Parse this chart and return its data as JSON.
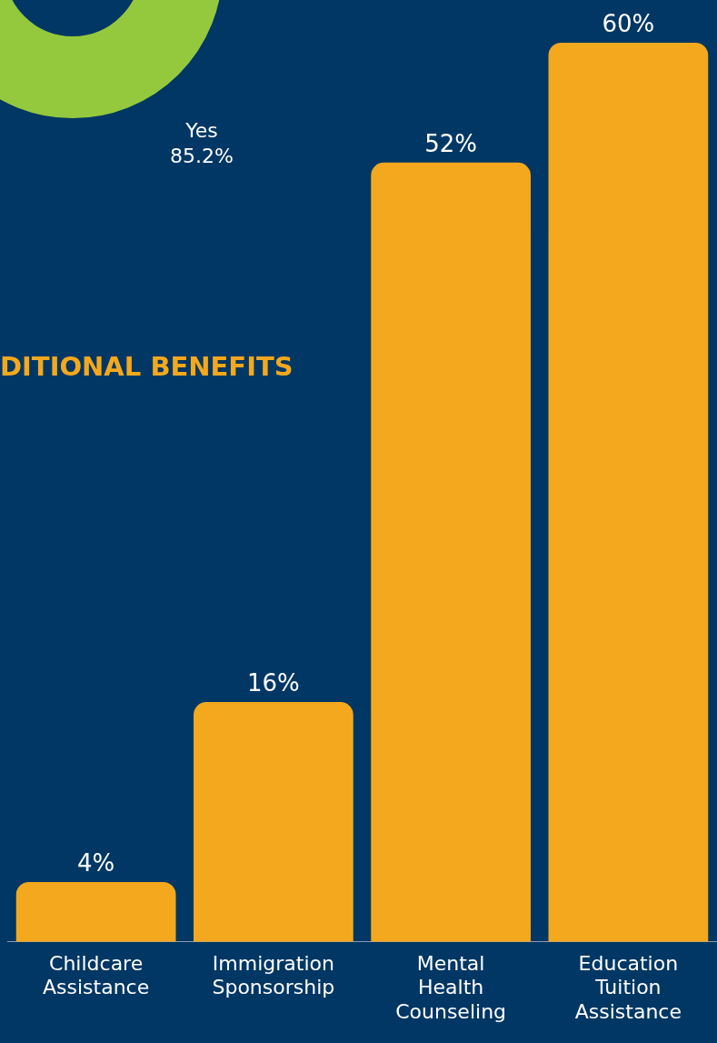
{
  "chart_data": {
    "type": "bar",
    "title": "DITIONAL BENEFITS",
    "categories": [
      "Childcare Assistance",
      "Immigration Sponsorship",
      "Mental Health Counseling",
      "Education Tuition Assistance"
    ],
    "values": [
      4,
      16,
      52,
      60
    ],
    "value_labels": [
      "4%",
      "16%",
      "52%",
      "60%"
    ],
    "color": "#f4a81d",
    "ylim": [
      0,
      60
    ],
    "annotations": [
      "Yes\n85.2%"
    ],
    "grid": false,
    "legend": false
  }
}
